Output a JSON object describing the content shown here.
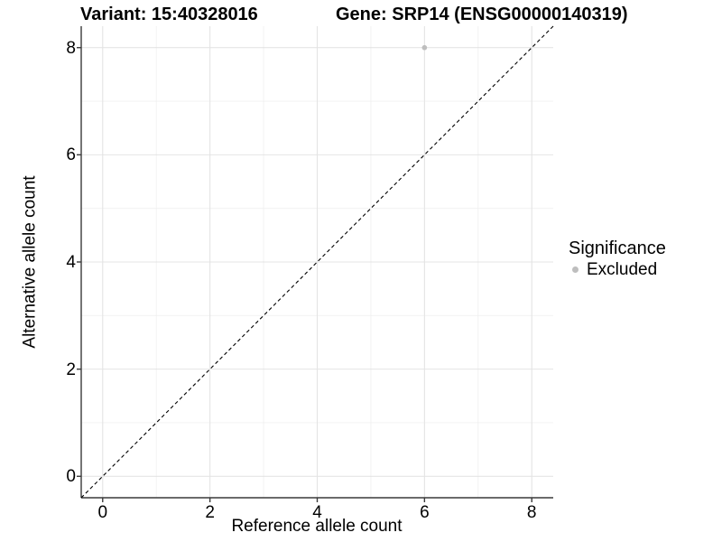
{
  "figure": {
    "variant_title": "Variant: 15:40328016",
    "gene_title": "Gene: SRP14 (ENSG00000140319)"
  },
  "chart_data": {
    "type": "scatter",
    "title": "Variant: 15:40328016   Gene: SRP14 (ENSG00000140319)",
    "xlabel": "Reference allele count",
    "ylabel": "Alternative allele count",
    "x_ticks": [
      0,
      2,
      4,
      6,
      8
    ],
    "y_ticks": [
      0,
      2,
      4,
      6,
      8
    ],
    "x_minor_ticks": [
      1,
      3,
      5,
      7
    ],
    "y_minor_ticks": [
      1,
      3,
      5,
      7
    ],
    "xlim": [
      -0.4,
      8.4
    ],
    "ylim": [
      -0.4,
      8.4
    ],
    "grid": true,
    "reference_line": {
      "type": "identity",
      "style": "dashed",
      "color": "#000000"
    },
    "series": [
      {
        "name": "Excluded",
        "color": "#bebebe",
        "points": [
          {
            "x": 6,
            "y": 8
          }
        ]
      }
    ],
    "legend": {
      "position": "right",
      "title": "Significance",
      "items": [
        {
          "label": "Excluded",
          "color": "#bebebe"
        }
      ]
    }
  },
  "colors": {
    "background": "#ffffff",
    "grid_major": "#e4e4e4",
    "grid_minor": "#f0f0f0",
    "axis_line": "#3a3a3a",
    "tick_mark": "#3a3a3a",
    "text": "#000000"
  }
}
